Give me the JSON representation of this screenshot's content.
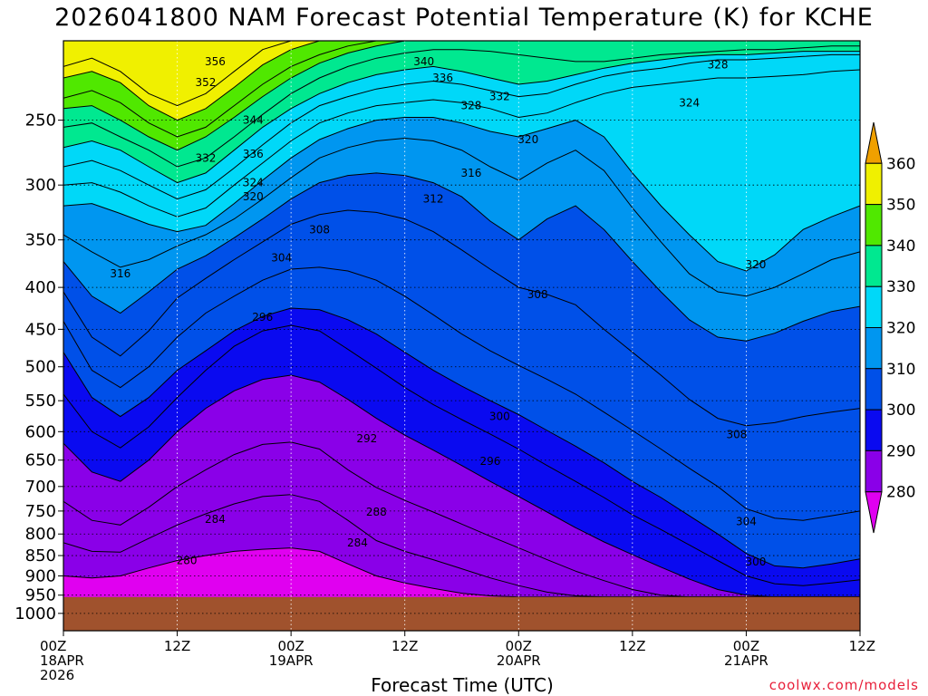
{
  "title": "2026041800 NAM Forecast Potential Temperature (K) for KCHE",
  "xaxis_title": "Forecast Time (UTC)",
  "credit": "coolwx.com/models",
  "chart_data": {
    "type": "heatmap",
    "title": "2026041800 NAM Forecast Potential Temperature (K) for KCHE",
    "xlabel": "Forecast Time (UTC)",
    "ylabel": "",
    "x_ticks": [
      {
        "hour": 0,
        "lines": [
          "00Z",
          "18APR",
          "2026"
        ]
      },
      {
        "hour": 12,
        "lines": [
          "12Z"
        ]
      },
      {
        "hour": 24,
        "lines": [
          "00Z",
          "19APR"
        ]
      },
      {
        "hour": 36,
        "lines": [
          "12Z"
        ]
      },
      {
        "hour": 48,
        "lines": [
          "00Z",
          "20APR"
        ]
      },
      {
        "hour": 60,
        "lines": [
          "12Z"
        ]
      },
      {
        "hour": 72,
        "lines": [
          "00Z",
          "21APR"
        ]
      },
      {
        "hour": 84,
        "lines": [
          "12Z"
        ]
      }
    ],
    "xlim": [
      0,
      84
    ],
    "y_ticks": [
      250,
      300,
      350,
      400,
      450,
      500,
      550,
      600,
      650,
      700,
      750,
      800,
      850,
      900,
      950,
      1000
    ],
    "ylim": [
      200,
      1050
    ],
    "y_scale": "log-pressure, inverted",
    "grid": true,
    "colorbar": {
      "levels": [
        280,
        290,
        300,
        310,
        320,
        330,
        340,
        350,
        360
      ],
      "colors": [
        "#e000f0",
        "#8a00e8",
        "#0a0af0",
        "#0050e8",
        "#0096f0",
        "#00d8f8",
        "#00e890",
        "#50e800",
        "#f0f000",
        "#f0a000"
      ],
      "placement": "right"
    },
    "ground_color": "#a0522d",
    "ground_surface_pressure": 955,
    "isentropes": [
      {
        "theta": 356,
        "p_by_hour": [
          215,
          210,
          218,
          232,
          240,
          232,
          218,
          205,
          200,
          200,
          200,
          200,
          200,
          200,
          200,
          200,
          200,
          200,
          200,
          200,
          200,
          200,
          200,
          200,
          200,
          200,
          200,
          200,
          200
        ]
      },
      {
        "theta": 352,
        "p_by_hour": [
          222,
          218,
          225,
          240,
          250,
          242,
          228,
          214,
          205,
          200,
          200,
          200,
          200,
          200,
          200,
          200,
          200,
          200,
          200,
          200,
          200,
          200,
          200,
          200,
          200,
          200,
          200,
          200,
          200
        ]
      },
      {
        "theta": 344,
        "p_by_hour": [
          235,
          230,
          238,
          252,
          262,
          255,
          240,
          226,
          215,
          208,
          203,
          200,
          200,
          200,
          200,
          200,
          200,
          200,
          200,
          200,
          200,
          200,
          200,
          200,
          200,
          200,
          200,
          200,
          200
        ]
      },
      {
        "theta": 340,
        "p_by_hour": [
          242,
          240,
          250,
          262,
          272,
          262,
          248,
          234,
          222,
          213,
          207,
          203,
          200,
          200,
          200,
          200,
          200,
          200,
          200,
          200,
          200,
          200,
          200,
          200,
          200,
          200,
          200,
          200,
          200
        ]
      },
      {
        "theta": 336,
        "p_by_hour": [
          255,
          252,
          262,
          272,
          285,
          278,
          262,
          246,
          232,
          222,
          215,
          210,
          207,
          205,
          205,
          206,
          208,
          210,
          212,
          212,
          210,
          208,
          207,
          206,
          205,
          205,
          204,
          203,
          203
        ]
      },
      {
        "theta": 332,
        "p_by_hour": [
          270,
          265,
          272,
          285,
          298,
          290,
          272,
          255,
          242,
          232,
          225,
          220,
          217,
          215,
          218,
          222,
          226,
          224,
          220,
          216,
          213,
          211,
          209,
          208,
          208,
          207,
          206,
          206,
          206
        ]
      },
      {
        "theta": 328,
        "p_by_hour": [
          285,
          280,
          288,
          300,
          312,
          304,
          286,
          268,
          252,
          240,
          234,
          229,
          226,
          224,
          226,
          230,
          234,
          232,
          226,
          221,
          218,
          216,
          213,
          211,
          211,
          210,
          209,
          208,
          208
        ]
      },
      {
        "theta": 324,
        "p_by_hour": [
          300,
          298,
          306,
          318,
          328,
          320,
          300,
          282,
          265,
          252,
          245,
          240,
          238,
          236,
          238,
          242,
          248,
          245,
          238,
          232,
          228,
          226,
          224,
          222,
          222,
          221,
          220,
          218,
          217
        ]
      },
      {
        "theta": 320,
        "p_by_hour": [
          318,
          316,
          325,
          335,
          342,
          336,
          316,
          296,
          278,
          264,
          256,
          250,
          248,
          248,
          252,
          258,
          262,
          256,
          250,
          262,
          290,
          318,
          345,
          372,
          382,
          365,
          340,
          328,
          318
        ]
      },
      {
        "theta": 316,
        "p_by_hour": [
          345,
          362,
          378,
          370,
          356,
          345,
          330,
          312,
          294,
          278,
          270,
          265,
          263,
          265,
          272,
          285,
          296,
          282,
          272,
          288,
          320,
          352,
          385,
          405,
          410,
          400,
          385,
          370,
          362
        ]
      },
      {
        "theta": 312,
        "p_by_hour": [
          372,
          410,
          430,
          405,
          380,
          366,
          348,
          330,
          312,
          298,
          292,
          290,
          292,
          298,
          310,
          332,
          350,
          330,
          318,
          340,
          372,
          405,
          438,
          460,
          465,
          455,
          440,
          428,
          422
        ]
      },
      {
        "theta": 308,
        "p_by_hour": [
          405,
          460,
          485,
          452,
          412,
          390,
          370,
          352,
          335,
          326,
          322,
          324,
          330,
          342,
          360,
          380,
          400,
          408,
          420,
          450,
          480,
          512,
          548,
          578,
          590,
          585,
          575,
          568,
          562
        ]
      },
      {
        "theta": 304,
        "p_by_hour": [
          440,
          505,
          530,
          500,
          460,
          430,
          410,
          392,
          380,
          378,
          382,
          392,
          410,
          432,
          456,
          478,
          498,
          518,
          540,
          568,
          598,
          630,
          665,
          700,
          745,
          765,
          770,
          760,
          750
        ]
      },
      {
        "theta": 300,
        "p_by_hour": [
          480,
          545,
          575,
          545,
          505,
          478,
          452,
          434,
          424,
          426,
          438,
          456,
          480,
          505,
          528,
          550,
          572,
          598,
          625,
          655,
          690,
          722,
          760,
          800,
          845,
          875,
          880,
          870,
          858
        ]
      },
      {
        "theta": 296,
        "p_by_hour": [
          540,
          600,
          628,
          592,
          545,
          505,
          472,
          452,
          445,
          452,
          476,
          502,
          530,
          556,
          580,
          604,
          630,
          660,
          690,
          722,
          758,
          790,
          825,
          862,
          900,
          920,
          925,
          918,
          910
        ]
      },
      {
        "theta": 292,
        "p_by_hour": [
          620,
          672,
          690,
          650,
          600,
          562,
          535,
          518,
          512,
          522,
          548,
          578,
          606,
          632,
          660,
          690,
          720,
          752,
          786,
          818,
          848,
          878,
          908,
          935,
          950,
          955,
          955,
          955,
          955
        ]
      },
      {
        "theta": 288,
        "p_by_hour": [
          730,
          770,
          780,
          742,
          700,
          668,
          640,
          622,
          618,
          630,
          668,
          702,
          728,
          752,
          778,
          805,
          832,
          860,
          888,
          912,
          935,
          950,
          955,
          955,
          955,
          955,
          955,
          955,
          955
        ]
      },
      {
        "theta": 284,
        "p_by_hour": [
          820,
          840,
          842,
          810,
          780,
          756,
          735,
          720,
          716,
          730,
          770,
          815,
          840,
          860,
          882,
          905,
          925,
          942,
          952,
          955,
          955,
          955,
          955,
          955,
          955,
          955,
          955,
          955,
          955
        ]
      },
      {
        "theta": 280,
        "p_by_hour": [
          900,
          905,
          900,
          880,
          862,
          850,
          840,
          835,
          832,
          840,
          870,
          900,
          918,
          932,
          945,
          952,
          955,
          955,
          955,
          955,
          955,
          955,
          955,
          955,
          955,
          955,
          955,
          955,
          955
        ]
      }
    ],
    "contour_labels": [
      {
        "text": "356",
        "hour": 16,
        "p": 212
      },
      {
        "text": "352",
        "hour": 15,
        "p": 225
      },
      {
        "text": "340",
        "hour": 38,
        "p": 212
      },
      {
        "text": "336",
        "hour": 40,
        "p": 222
      },
      {
        "text": "332",
        "hour": 46,
        "p": 234
      },
      {
        "text": "328",
        "hour": 43,
        "p": 240
      },
      {
        "text": "328",
        "hour": 69,
        "p": 214
      },
      {
        "text": "324",
        "hour": 66,
        "p": 238
      },
      {
        "text": "344",
        "hour": 20,
        "p": 250
      },
      {
        "text": "320",
        "hour": 49,
        "p": 264
      },
      {
        "text": "332",
        "hour": 15,
        "p": 278
      },
      {
        "text": "336",
        "hour": 20,
        "p": 275
      },
      {
        "text": "316",
        "hour": 43,
        "p": 290
      },
      {
        "text": "324",
        "hour": 20,
        "p": 298
      },
      {
        "text": "320",
        "hour": 20,
        "p": 310
      },
      {
        "text": "312",
        "hour": 39,
        "p": 312
      },
      {
        "text": "308",
        "hour": 27,
        "p": 340
      },
      {
        "text": "304",
        "hour": 23,
        "p": 368
      },
      {
        "text": "320",
        "hour": 73,
        "p": 375
      },
      {
        "text": "316",
        "hour": 6,
        "p": 385
      },
      {
        "text": "308",
        "hour": 50,
        "p": 408
      },
      {
        "text": "296",
        "hour": 21,
        "p": 435
      },
      {
        "text": "300",
        "hour": 46,
        "p": 575
      },
      {
        "text": "308",
        "hour": 71,
        "p": 605
      },
      {
        "text": "292",
        "hour": 32,
        "p": 612
      },
      {
        "text": "296",
        "hour": 45,
        "p": 652
      },
      {
        "text": "288",
        "hour": 33,
        "p": 752
      },
      {
        "text": "284",
        "hour": 16,
        "p": 768
      },
      {
        "text": "304",
        "hour": 72,
        "p": 772
      },
      {
        "text": "284",
        "hour": 31,
        "p": 820
      },
      {
        "text": "300",
        "hour": 73,
        "p": 865
      },
      {
        "text": "280",
        "hour": 13,
        "p": 862
      }
    ]
  }
}
